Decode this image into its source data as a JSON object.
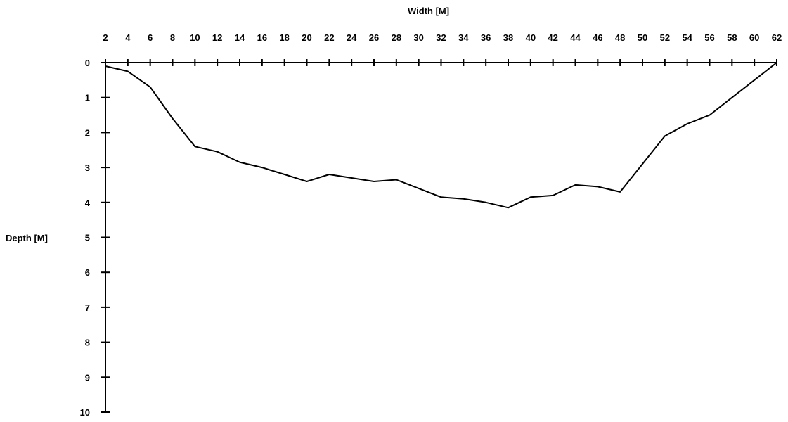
{
  "chart_data": {
    "type": "line",
    "title": "",
    "xlabel": "Width [M]",
    "ylabel": "Depth [M]",
    "x_axis_position": "top",
    "y_axis_inverted": true,
    "xlim": [
      2,
      62
    ],
    "ylim": [
      0,
      10
    ],
    "xticks": [
      2,
      4,
      6,
      8,
      10,
      12,
      14,
      16,
      18,
      20,
      22,
      24,
      26,
      28,
      30,
      32,
      34,
      36,
      38,
      40,
      42,
      44,
      46,
      48,
      50,
      52,
      54,
      56,
      58,
      60,
      62
    ],
    "yticks": [
      0,
      1,
      2,
      3,
      4,
      5,
      6,
      7,
      8,
      9,
      10
    ],
    "grid": false,
    "legend": "none",
    "line_color": "#000000",
    "series": [
      {
        "x": [
          2,
          4,
          6,
          8,
          10,
          12,
          14,
          16,
          18,
          20,
          22,
          24,
          26,
          28,
          30,
          32,
          34,
          36,
          38,
          40,
          42,
          44,
          46,
          48,
          50,
          52,
          54,
          56,
          58,
          60,
          62
        ],
        "y": [
          0.1,
          0.25,
          0.7,
          1.6,
          2.4,
          2.55,
          2.85,
          3.0,
          3.2,
          3.4,
          3.2,
          3.3,
          3.4,
          3.35,
          3.6,
          3.85,
          3.9,
          4.0,
          4.15,
          3.85,
          3.8,
          3.5,
          3.55,
          3.7,
          2.9,
          2.1,
          1.75,
          1.5,
          1.0,
          0.5,
          0.0
        ]
      }
    ]
  }
}
